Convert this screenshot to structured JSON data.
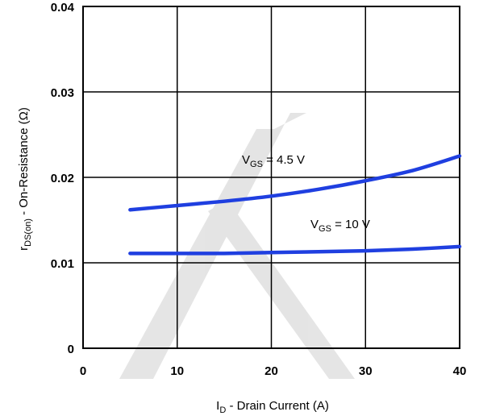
{
  "chart_data": {
    "type": "line",
    "xlabel": {
      "main": "I",
      "sub": "D",
      "rest": " - Drain Current (A)"
    },
    "ylabel": {
      "main": "r",
      "sub": "DS(on)",
      "rest": " - On-Resistance (Ω)"
    },
    "xlim": [
      0,
      40
    ],
    "ylim": [
      0,
      0.04
    ],
    "x_ticks": [
      0,
      10,
      20,
      30,
      40
    ],
    "x_tick_labels": [
      "0",
      "10",
      "20",
      "30",
      "40"
    ],
    "y_ticks": [
      0,
      0.01,
      0.02,
      0.03,
      0.04
    ],
    "y_tick_labels": [
      "0",
      "0.01",
      "0.02",
      "0.03",
      "0.04"
    ],
    "grid": true,
    "line_color": "#1f3fe0",
    "series": [
      {
        "label": {
          "main": "V",
          "sub": "GS",
          "rest": " = 4.5 V"
        },
        "x": [
          5,
          10,
          15,
          20,
          25,
          30,
          35,
          40
        ],
        "y": [
          0.0162,
          0.0167,
          0.0172,
          0.0178,
          0.0186,
          0.0196,
          0.0208,
          0.0225
        ]
      },
      {
        "label": {
          "main": "V",
          "sub": "GS",
          "rest": " = 10 V"
        },
        "x": [
          5,
          10,
          15,
          20,
          25,
          30,
          35,
          40
        ],
        "y": [
          0.0111,
          0.0111,
          0.0111,
          0.0112,
          0.0113,
          0.0114,
          0.0116,
          0.0119
        ]
      }
    ]
  }
}
